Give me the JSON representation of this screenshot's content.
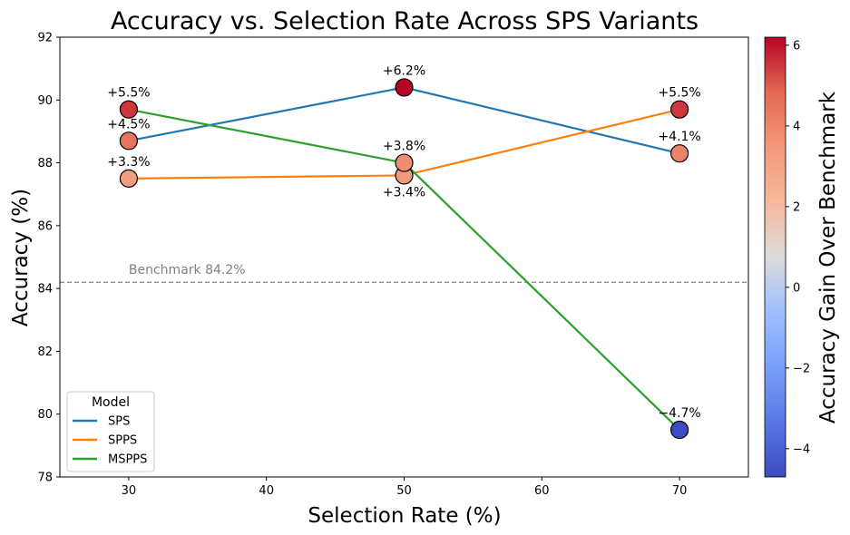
{
  "chart_data": {
    "type": "line",
    "title": "Accuracy vs. Selection Rate Across SPS Variants",
    "xlabel": "Selection Rate (%)",
    "ylabel": "Accuracy (%)",
    "xlim": [
      25,
      75
    ],
    "ylim": [
      78,
      92
    ],
    "x_ticks": [
      30,
      40,
      50,
      60,
      70
    ],
    "y_ticks": [
      78,
      80,
      82,
      84,
      86,
      88,
      90,
      92
    ],
    "x": [
      30,
      50,
      70
    ],
    "series": [
      {
        "name": "SPS",
        "color": "#1f77b4",
        "values": [
          88.7,
          90.4,
          88.3
        ],
        "gains": [
          4.5,
          6.2,
          4.1
        ],
        "labels": [
          "+4.5%",
          "+6.2%",
          "+4.1%"
        ]
      },
      {
        "name": "SPPS",
        "color": "#ff7f0e",
        "values": [
          87.5,
          87.6,
          89.7
        ],
        "gains": [
          3.3,
          3.4,
          5.5
        ],
        "labels": [
          "+3.3%",
          "+3.4%",
          "+5.5%"
        ]
      },
      {
        "name": "MSPPS",
        "color": "#2ca02c",
        "values": [
          89.7,
          88.0,
          79.5
        ],
        "gains": [
          5.5,
          3.8,
          -4.7
        ],
        "labels": [
          "+5.5%",
          "+3.8%",
          "−4.7%"
        ]
      }
    ],
    "benchmark": {
      "value": 84.2,
      "label": "Benchmark 84.2%"
    },
    "legend": {
      "title": "Model",
      "position": "lower-left"
    },
    "colorbar": {
      "label": "Accuracy Gain Over Benchmark",
      "range": [
        -4.7,
        6.2
      ],
      "ticks": [
        -4,
        -2,
        0,
        2,
        4,
        6
      ],
      "tick_labels": [
        "−4",
        "−2",
        "0",
        "2",
        "4",
        "6"
      ],
      "colormap": "coolwarm"
    }
  }
}
